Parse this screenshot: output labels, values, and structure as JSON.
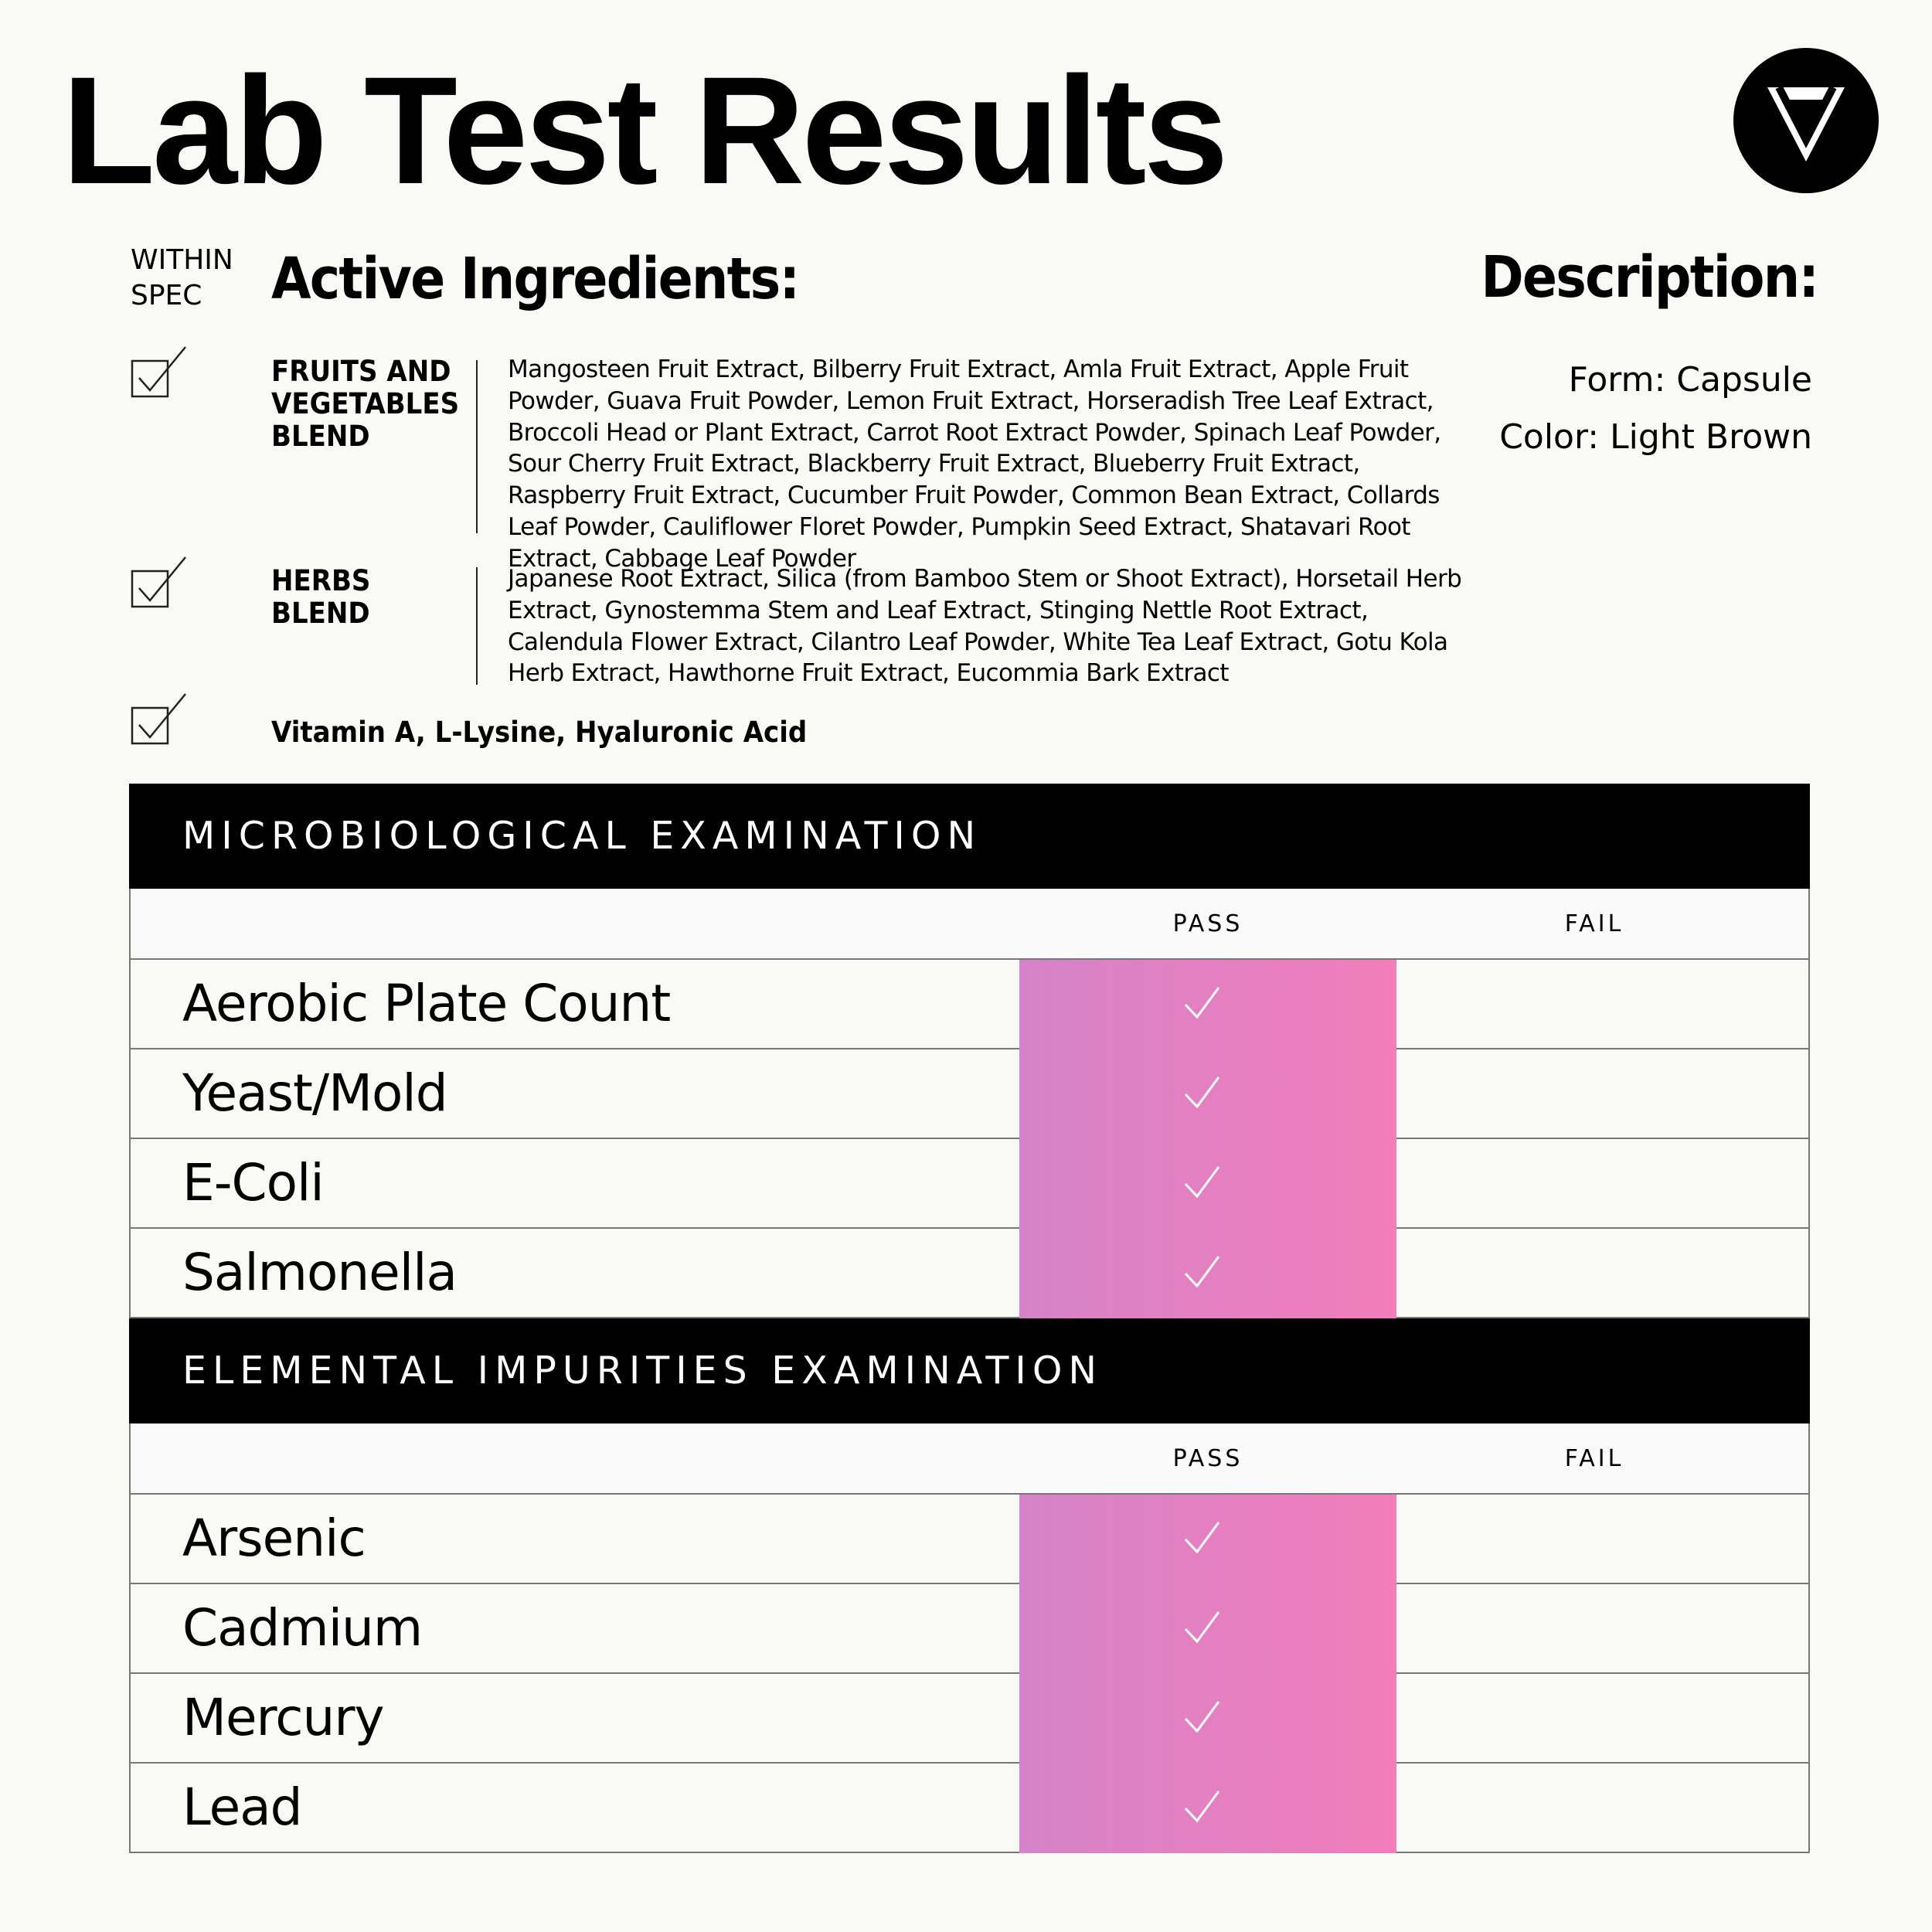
{
  "title": "Lab Test Results",
  "within_spec": "WITHIN SPEC",
  "active_ingredients": {
    "heading": "Active Ingredients:",
    "groups": [
      {
        "name": "FRUITS AND VEGETABLES BLEND",
        "items": "Mangosteen Fruit Extract, Bilberry Fruit Extract, Amla Fruit Extract, Apple Fruit Powder, Guava Fruit Powder, Lemon Fruit Extract, Horseradish Tree Leaf Extract, Broccoli Head or Plant Extract, Carrot Root Extract Powder, Spinach Leaf Powder, Sour Cherry Fruit Extract, Blackberry Fruit Extract, Blueberry Fruit Extract, Raspberry Fruit Extract, Cucumber Fruit Powder, Common Bean Extract, Collards Leaf Powder, Cauliflower Floret Powder, Pumpkin Seed Extract, Shatavari Root Extract, Cabbage Leaf Powder"
      },
      {
        "name": "HERBS BLEND",
        "items": "Japanese Root Extract, Silica (from Bamboo Stem or Shoot Extract), Horsetail Herb Extract, Gynostemma Stem and Leaf Extract, Stinging Nettle Root Extract, Calendula Flower Extract, Cilantro Leaf Powder, White Tea Leaf Extract, Gotu Kola Herb Extract, Hawthorne Fruit Extract, Eucommia Bark Extract"
      }
    ],
    "other": "Vitamin A, L-Lysine, Hyaluronic Acid"
  },
  "description": {
    "heading": "Description:",
    "lines": [
      "Form: Capsule",
      "Color: Light Brown"
    ]
  },
  "sections": [
    {
      "title": "MICROBIOLOGICAL EXAMINATION",
      "columns": [
        "PASS",
        "FAIL"
      ],
      "rows": [
        "Aerobic Plate Count",
        "Yeast/Mold",
        "E-Coli",
        "Salmonella"
      ]
    },
    {
      "title": "ELEMENTAL IMPURITIES EXAMINATION",
      "columns": [
        "PASS",
        "FAIL"
      ],
      "rows": [
        "Arsenic",
        "Cadmium",
        "Mercury",
        "Lead"
      ]
    }
  ]
}
